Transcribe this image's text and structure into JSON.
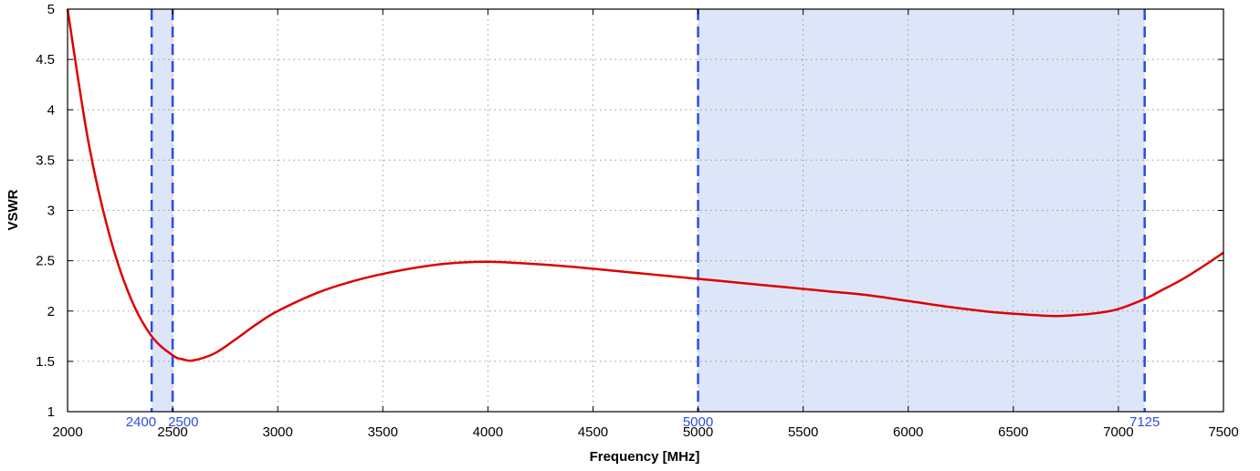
{
  "chart_data": {
    "type": "line",
    "title": "",
    "xlabel": "Frequency [MHz]",
    "ylabel": "VSWR",
    "xlim": [
      2000,
      7500
    ],
    "ylim": [
      1,
      5
    ],
    "grid": true,
    "x_ticks": [
      "2000",
      "2500",
      "3000",
      "3500",
      "4000",
      "4500",
      "5000",
      "5500",
      "6000",
      "6500",
      "7000",
      "7500"
    ],
    "y_ticks": [
      "1",
      "1.5",
      "2",
      "2.5",
      "3",
      "3.5",
      "4",
      "4.5",
      "5"
    ],
    "bands": [
      {
        "start": 2400,
        "end": 2500,
        "start_label": "2400",
        "end_label": "2500"
      },
      {
        "start": 5000,
        "end": 7125,
        "start_label": "5000",
        "end_label": "7125"
      }
    ],
    "band_fill_color": "#dde5f8",
    "band_line_color": "#2b4ee0",
    "series": [
      {
        "color": "#dd0000",
        "x": [
          2000,
          2100,
          2200,
          2300,
          2400,
          2500,
          2550,
          2600,
          2700,
          2800,
          2900,
          3000,
          3200,
          3400,
          3600,
          3800,
          4000,
          4200,
          4400,
          4600,
          4800,
          5000,
          5200,
          5400,
          5600,
          5800,
          6000,
          6200,
          6400,
          6600,
          6700,
          6800,
          6900,
          7000,
          7125,
          7200,
          7300,
          7400,
          7500
        ],
        "y": [
          5.0,
          3.67,
          2.75,
          2.13,
          1.75,
          1.56,
          1.52,
          1.51,
          1.58,
          1.72,
          1.87,
          2.0,
          2.19,
          2.32,
          2.41,
          2.47,
          2.49,
          2.47,
          2.44,
          2.4,
          2.36,
          2.32,
          2.28,
          2.24,
          2.2,
          2.16,
          2.1,
          2.04,
          1.99,
          1.96,
          1.95,
          1.96,
          1.98,
          2.02,
          2.12,
          2.2,
          2.31,
          2.44,
          2.58
        ]
      }
    ]
  }
}
